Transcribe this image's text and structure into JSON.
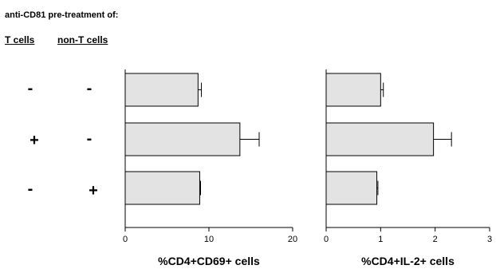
{
  "title": "anti-CD81 pre-treatment of:",
  "headers": [
    "T cells",
    "non-T cells"
  ],
  "conditions": [
    {
      "t_cells": "-",
      "non_t_cells": "-"
    },
    {
      "t_cells": "+",
      "non_t_cells": "-"
    },
    {
      "t_cells": "-",
      "non_t_cells": "+"
    }
  ],
  "colors": {
    "bar_fill": "#e3e3e3",
    "stroke": "#000000"
  },
  "chart_data": [
    {
      "type": "bar",
      "orientation": "horizontal",
      "categories": [
        "-/-",
        "+/-",
        "-/+"
      ],
      "values": [
        8.7,
        13.7,
        8.9
      ],
      "errors": [
        0.4,
        2.3,
        0.1
      ],
      "xlabel": "%CD4+CD69+ cells",
      "xlim": [
        0,
        20
      ],
      "xticks": [
        0,
        10,
        20
      ],
      "grid": false
    },
    {
      "type": "bar",
      "orientation": "horizontal",
      "categories": [
        "-/-",
        "+/-",
        "-/+"
      ],
      "values": [
        1.0,
        1.97,
        0.93
      ],
      "errors": [
        0.05,
        0.33,
        0.02
      ],
      "xlabel": "%CD4+IL-2+ cells",
      "xlim": [
        0,
        3
      ],
      "xticks": [
        0,
        1,
        2,
        3
      ],
      "grid": false
    }
  ]
}
